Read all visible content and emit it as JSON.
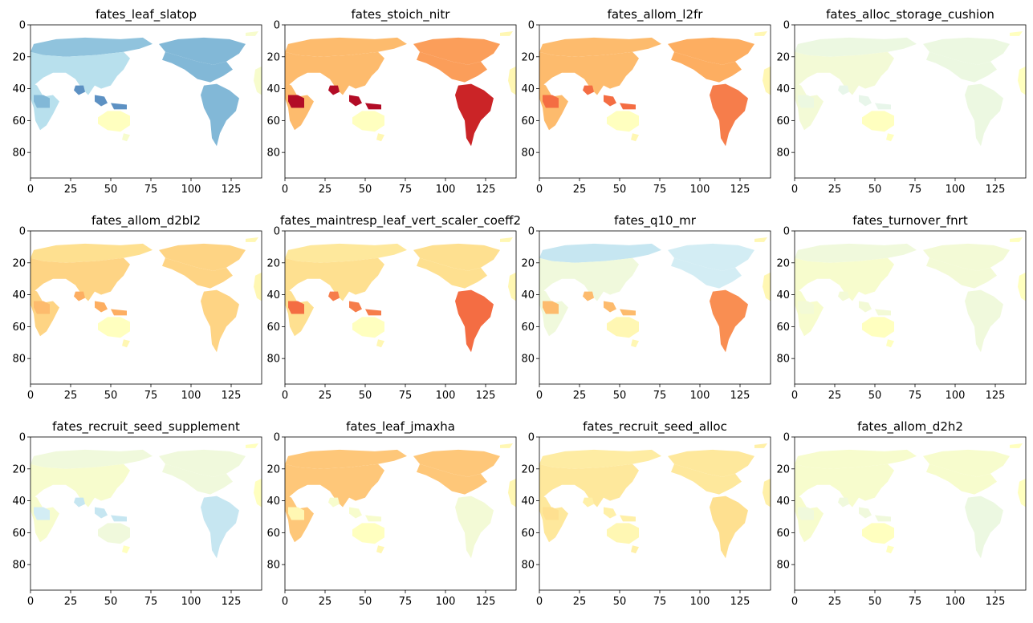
{
  "chart_data": {
    "type": "heatmap",
    "layout": {
      "rows": 3,
      "cols": 4
    },
    "colormap": {
      "name": "RdYlBu_r",
      "low_color": "#2166ac",
      "mid_color": "#ffffbf",
      "high_color": "#a50026"
    },
    "xlim": [
      0,
      144
    ],
    "ylim": [
      96,
      0
    ],
    "xticks": [
      0,
      25,
      50,
      75,
      100,
      125
    ],
    "yticks": [
      0,
      20,
      40,
      60,
      80
    ],
    "panels": [
      {
        "title": "fates_leaf_slatop",
        "intensity": {
          "global": -0.05,
          "n_america": -0.35,
          "boreal": -0.5,
          "africa": -0.55,
          "se_asia": -0.7,
          "s_america": -0.55,
          "australia": 0.0,
          "asia_boreal": -0.55
        }
      },
      {
        "title": "fates_stoich_nitr",
        "intensity": {
          "global": 0.05,
          "n_america": 0.35,
          "boreal": 0.35,
          "africa": 0.95,
          "se_asia": 0.95,
          "s_america": 0.85,
          "australia": 0.0,
          "asia_boreal": 0.45
        }
      },
      {
        "title": "fates_allom_l2fr",
        "intensity": {
          "global": 0.05,
          "n_america": 0.35,
          "boreal": 0.35,
          "africa": 0.6,
          "se_asia": 0.6,
          "s_america": 0.55,
          "australia": 0.0,
          "asia_boreal": 0.4
        }
      },
      {
        "title": "fates_alloc_storage_cushion",
        "intensity": {
          "global": 0.0,
          "n_america": -0.08,
          "boreal": -0.12,
          "africa": -0.12,
          "se_asia": -0.15,
          "s_america": -0.12,
          "australia": 0.0,
          "asia_boreal": -0.12
        }
      },
      {
        "title": "fates_allom_d2bl2",
        "intensity": {
          "global": 0.05,
          "n_america": 0.25,
          "boreal": 0.2,
          "africa": 0.35,
          "se_asia": 0.4,
          "s_america": 0.25,
          "australia": 0.0,
          "asia_boreal": 0.25
        }
      },
      {
        "title": "fates_maintresp_leaf_vert_scaler_coeff2",
        "intensity": {
          "global": 0.05,
          "n_america": 0.2,
          "boreal": 0.15,
          "africa": 0.6,
          "se_asia": 0.55,
          "s_america": 0.6,
          "australia": 0.0,
          "asia_boreal": 0.2
        }
      },
      {
        "title": "fates_q10_mr",
        "intensity": {
          "global": 0.05,
          "n_america": -0.1,
          "boreal": -0.3,
          "africa": 0.35,
          "se_asia": 0.35,
          "s_america": 0.5,
          "australia": 0.05,
          "asia_boreal": -0.25
        }
      },
      {
        "title": "fates_turnover_fnrt",
        "intensity": {
          "global": 0.0,
          "n_america": -0.05,
          "boreal": -0.1,
          "africa": -0.08,
          "se_asia": -0.08,
          "s_america": -0.1,
          "australia": 0.0,
          "asia_boreal": -0.08
        }
      },
      {
        "title": "fates_recruit_seed_supplement",
        "intensity": {
          "global": 0.0,
          "n_america": -0.05,
          "boreal": -0.1,
          "africa": -0.25,
          "se_asia": -0.3,
          "s_america": -0.3,
          "australia": -0.1,
          "asia_boreal": -0.1
        }
      },
      {
        "title": "fates_leaf_jmaxha",
        "intensity": {
          "global": 0.05,
          "n_america": 0.3,
          "boreal": 0.3,
          "africa": 0.05,
          "se_asia": -0.05,
          "s_america": -0.08,
          "australia": 0.0,
          "asia_boreal": 0.3
        }
      },
      {
        "title": "fates_recruit_seed_alloc",
        "intensity": {
          "global": 0.1,
          "n_america": 0.15,
          "boreal": 0.12,
          "africa": 0.2,
          "se_asia": 0.1,
          "s_america": 0.2,
          "australia": 0.05,
          "asia_boreal": 0.15
        }
      },
      {
        "title": "fates_allom_d2h2",
        "intensity": {
          "global": 0.0,
          "n_america": -0.05,
          "boreal": -0.05,
          "africa": -0.1,
          "se_asia": -0.1,
          "s_america": -0.12,
          "australia": 0.0,
          "asia_boreal": -0.05
        }
      }
    ]
  }
}
